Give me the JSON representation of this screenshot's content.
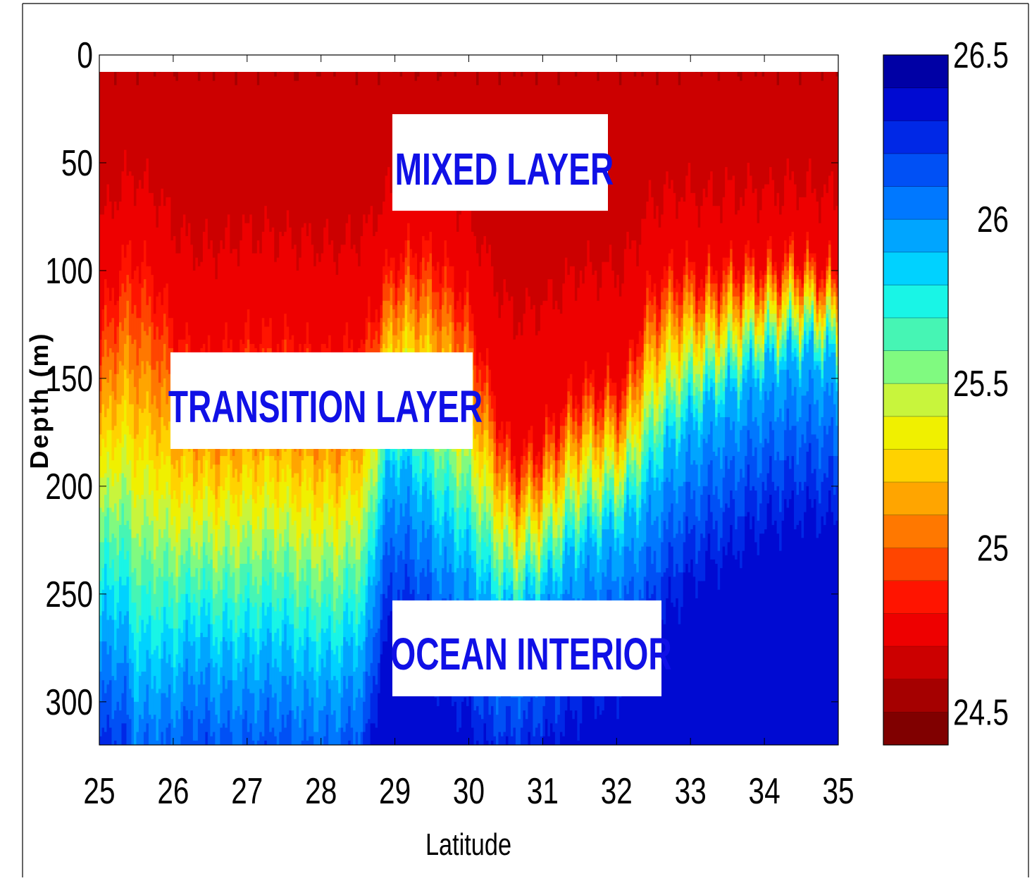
{
  "chart_data": {
    "type": "heatmap",
    "subtype": "filled-contour-section",
    "xlabel": "Latitude",
    "ylabel": "Depth (m)",
    "xlim": [
      25,
      35
    ],
    "ylim": [
      320,
      0
    ],
    "y_axis_inverted": true,
    "x_ticks": [
      "25",
      "26",
      "27",
      "28",
      "29",
      "30",
      "31",
      "32",
      "33",
      "34",
      "35"
    ],
    "y_ticks": [
      "0",
      "50",
      "100",
      "150",
      "200",
      "250",
      "300"
    ],
    "colorbar": {
      "range": [
        24.4,
        26.5
      ],
      "levels": 21,
      "ticks": [
        "26.5",
        "26",
        "25.5",
        "25",
        "24.5"
      ],
      "colors": [
        "#800000",
        "#a50000",
        "#cc0000",
        "#ee0000",
        "#ff1400",
        "#ff4500",
        "#ff7800",
        "#ffa500",
        "#ffd200",
        "#f0f000",
        "#c8f53c",
        "#80fa80",
        "#46f5b4",
        "#19f5e6",
        "#00d2ff",
        "#00a5ff",
        "#0078ff",
        "#0050f5",
        "#0028e6",
        "#000ad2",
        "#0000a5"
      ]
    },
    "annotations": [
      "MIXED LAYER",
      "TRANSITION LAYER",
      "OCEAN INTERIOR"
    ],
    "grid": false,
    "surface_density": 24.6,
    "deep_density": 26.4,
    "profile_latitudes": [
      25.0,
      25.3,
      25.5,
      25.8,
      26.0,
      26.3,
      26.6,
      27.0,
      27.4,
      27.8,
      28.2,
      28.6,
      28.8,
      29.0,
      29.3,
      29.6,
      30.0,
      30.3,
      30.6,
      31.0,
      31.5,
      31.8,
      32.1,
      32.4,
      32.6,
      32.9,
      33.2,
      33.5,
      33.8,
      34.1,
      34.4,
      34.7,
      35.0
    ],
    "mixed_layer_depth_m": [
      120,
      90,
      85,
      100,
      120,
      135,
      135,
      125,
      125,
      130,
      135,
      125,
      105,
      90,
      85,
      88,
      110,
      150,
      185,
      175,
      150,
      150,
      150,
      110,
      100,
      95,
      100,
      95,
      95,
      95,
      90,
      95,
      100
    ],
    "interior_depth_m": [
      265,
      260,
      290,
      285,
      285,
      270,
      280,
      280,
      275,
      285,
      285,
      270,
      210,
      190,
      200,
      220,
      235,
      255,
      260,
      250,
      230,
      225,
      220,
      205,
      190,
      175,
      165,
      160,
      150,
      145,
      140,
      140,
      145
    ]
  }
}
